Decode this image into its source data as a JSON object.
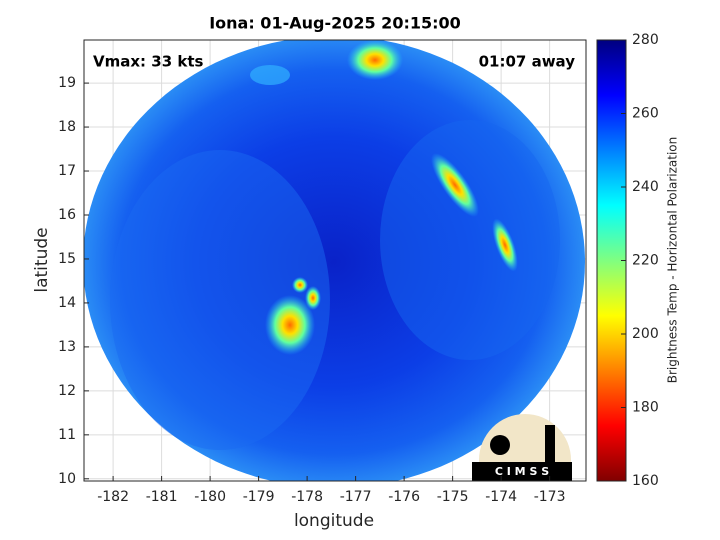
{
  "chart_data": {
    "type": "map",
    "title": "Iona: 01-Aug-2025 20:15:00",
    "annotations": [
      "Vmax: 33 kts",
      "01:07 away"
    ],
    "xlabel": "longitude",
    "ylabel": "latitude",
    "xlim": [
      -182.6,
      -172.25
    ],
    "xticks": [
      -182,
      -181,
      -180,
      -179,
      -178,
      -177,
      -176,
      -175,
      -174,
      -173
    ],
    "ylim": [
      9.95,
      19.98
    ],
    "yticks": [
      10,
      11,
      12,
      13,
      14,
      15,
      16,
      17,
      18,
      19
    ],
    "grid": true,
    "colorbar": {
      "label": "Brightness Temp - Horizontal Polarization",
      "lim": [
        160,
        280
      ],
      "ticks": [
        160,
        180,
        200,
        220,
        240,
        260,
        280
      ],
      "colormap": [
        "#800000",
        "#ff0000",
        "#ff8000",
        "#ffff00",
        "#80ff80",
        "#00ffff",
        "#0080ff",
        "#0000ff",
        "#000080"
      ]
    },
    "logo": "C I M S S"
  }
}
